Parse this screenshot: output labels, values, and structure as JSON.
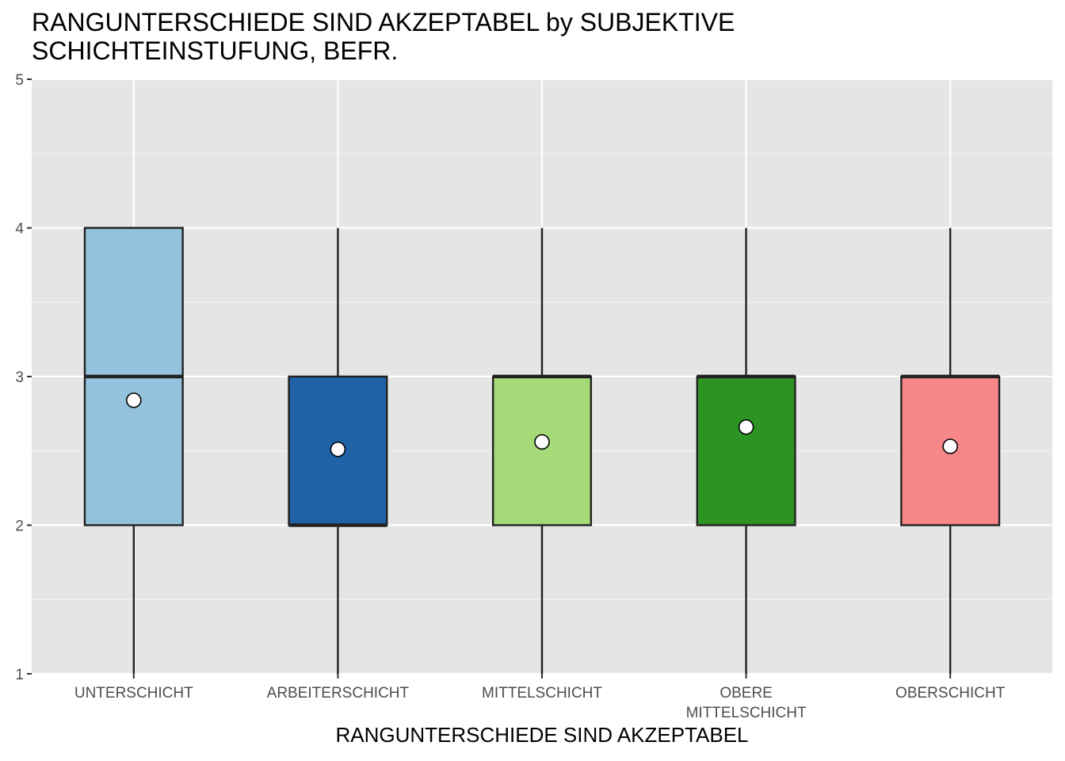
{
  "chart_data": {
    "type": "boxplot",
    "title_lines": [
      "RANGUNTERSCHIEDE SIND AKZEPTABEL by SUBJEKTIVE",
      "SCHICHTEINSTUFUNG, BEFR."
    ],
    "xlabel": "RANGUNTERSCHIEDE SIND AKZEPTABEL",
    "ylabel": "",
    "ylim": [
      1,
      5
    ],
    "yticks": [
      "1",
      "2",
      "3",
      "4",
      "5"
    ],
    "grid": true,
    "categories": [
      {
        "label_lines": [
          "UNTERSCHICHT"
        ],
        "min": 1,
        "q1": 2,
        "median": 3,
        "q3": 4,
        "max": 4,
        "mean": 2.84,
        "color": "#94c1db"
      },
      {
        "label_lines": [
          "ARBEITERSCHICHT"
        ],
        "min": 1,
        "q1": 2,
        "median": 2,
        "q3": 3,
        "max": 4,
        "mean": 2.51,
        "color": "#1f62a5"
      },
      {
        "label_lines": [
          "MITTELSCHICHT"
        ],
        "min": 1,
        "q1": 2,
        "median": 3,
        "q3": 3,
        "max": 4,
        "mean": 2.56,
        "color": "#a6da78"
      },
      {
        "label_lines": [
          "OBERE",
          "MITTELSCHICHT"
        ],
        "min": 1,
        "q1": 2,
        "median": 3,
        "q3": 3,
        "max": 4,
        "mean": 2.66,
        "color": "#2d9424"
      },
      {
        "label_lines": [
          "OBERSCHICHT"
        ],
        "min": 1,
        "q1": 2,
        "median": 3,
        "q3": 3,
        "max": 4,
        "mean": 2.53,
        "color": "#f88789"
      }
    ]
  }
}
